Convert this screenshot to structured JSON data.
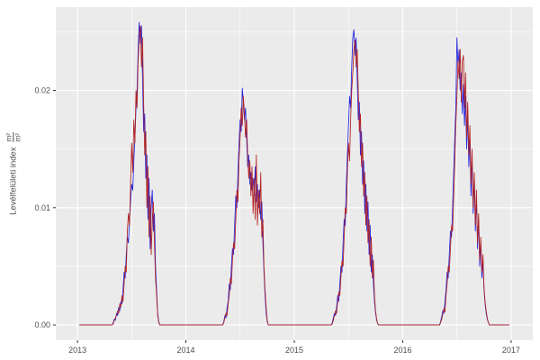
{
  "figure": {
    "bg": "#FFFFFF",
    "panel_bg": "#EBEBEB",
    "grid_color": "#FFFFFF",
    "tick_color": "#333333",
    "label_color": "#4D4D4D"
  },
  "chart_data": {
    "type": "line",
    "title": "",
    "xlabel": "",
    "ylabel": "Levélfelületi index m²/m²",
    "ylabel_text": "Levélfelületi index",
    "ylabel_frac_num": "m²",
    "ylabel_frac_den": "m²",
    "x_unit": "decimal year",
    "x_domain": [
      2012.8,
      2017.2
    ],
    "y_domain": [
      -0.0013,
      0.0271
    ],
    "x_ticks": [
      {
        "v": 2013,
        "label": "2013"
      },
      {
        "v": 2014,
        "label": "2014"
      },
      {
        "v": 2015,
        "label": "2015"
      },
      {
        "v": 2016,
        "label": "2016"
      },
      {
        "v": 2017,
        "label": "2017"
      }
    ],
    "y_ticks": [
      {
        "v": 0.0,
        "label": "0.00"
      },
      {
        "v": 0.01,
        "label": "0.01"
      },
      {
        "v": 0.02,
        "label": "0.02"
      }
    ],
    "x_minor": [
      2013.5,
      2014.5,
      2015.5,
      2016.5
    ],
    "y_minor": [
      0.005,
      0.015,
      0.025
    ],
    "grid": true,
    "legend": "none",
    "series": [
      {
        "name": "blue",
        "color": "#2222DD",
        "segments": [
          {
            "x0": 2013.02,
            "dx": 0.3,
            "y": [
              0,
              0
            ]
          },
          {
            "x0": 2013.32,
            "dx": 0.01,
            "y": [
              0,
              0.0002,
              0.0005,
              0.0004,
              0.001,
              0.0008,
              0.0015,
              0.0012,
              0.002,
              0.0018,
              0.003,
              0.0045,
              0.004,
              0.006,
              0.0075,
              0.007,
              0.009,
              0.0105,
              0.012,
              0.0115,
              0.014,
              0.016,
              0.0185,
              0.02,
              0.0235,
              0.0258,
              0.024,
              0.0255,
              0.021,
              0.0165,
              0.018,
              0.0125,
              0.0145,
              0.009,
              0.0125,
              0.0065,
              0.01,
              0.0115,
              0.008,
              0.0095,
              0.005,
              0.003,
              0.001,
              0.0003,
              0
            ]
          },
          {
            "x0": 2014.34,
            "dx": 0.01,
            "y": [
              0,
              0.0003,
              0.0008,
              0.0006,
              0.0015,
              0.002,
              0.0035,
              0.003,
              0.005,
              0.0065,
              0.006,
              0.0085,
              0.011,
              0.01,
              0.013,
              0.0155,
              0.0175,
              0.0165,
              0.0202,
              0.019,
              0.0175,
              0.0185,
              0.016,
              0.0135,
              0.0145,
              0.012,
              0.013,
              0.0115,
              0.0125,
              0.011,
              0.0135,
              0.0105,
              0.012,
              0.01,
              0.0115,
              0.009,
              0.0105,
              0.007,
              0.0045,
              0.0025,
              0.001,
              0.0003,
              0
            ]
          },
          {
            "x0": 2015.34,
            "dx": 0.01,
            "y": [
              0,
              0.0002,
              0.0006,
              0.001,
              0.0008,
              0.0015,
              0.0025,
              0.002,
              0.0035,
              0.005,
              0.0045,
              0.007,
              0.009,
              0.0085,
              0.012,
              0.0145,
              0.017,
              0.0195,
              0.0185,
              0.022,
              0.0245,
              0.0252,
              0.023,
              0.0245,
              0.021,
              0.0175,
              0.019,
              0.0145,
              0.0165,
              0.012,
              0.014,
              0.0095,
              0.012,
              0.008,
              0.0105,
              0.006,
              0.0085,
              0.0045,
              0.006,
              0.0035,
              0.002,
              0.001,
              0.0004,
              0.0001,
              0
            ]
          },
          {
            "x0": 2016.34,
            "dx": 0.01,
            "y": [
              0,
              0.0003,
              0.0007,
              0.0012,
              0.001,
              0.002,
              0.003,
              0.0045,
              0.004,
              0.006,
              0.008,
              0.0075,
              0.01,
              0.013,
              0.016,
              0.0185,
              0.0245,
              0.022,
              0.0235,
              0.02,
              0.0215,
              0.018,
              0.0205,
              0.017,
              0.0195,
              0.015,
              0.018,
              0.0135,
              0.016,
              0.011,
              0.014,
              0.0095,
              0.0125,
              0.008,
              0.011,
              0.0065,
              0.009,
              0.005,
              0.007,
              0.004,
              0.0055,
              0.003,
              0.0018,
              0.001,
              0.0005,
              0.0002,
              0
            ]
          },
          {
            "x0": 2016.8,
            "dx": 0.18,
            "y": [
              0,
              0
            ]
          }
        ]
      },
      {
        "name": "darkred",
        "color": "#B22222",
        "segments": [
          {
            "x0": 2013.02,
            "dx": 0.3,
            "y": [
              0,
              0
            ]
          },
          {
            "x0": 2013.32,
            "dx": 0.01,
            "y": [
              0,
              0.0001,
              0.0004,
              0.0006,
              0.0008,
              0.0012,
              0.001,
              0.0018,
              0.0015,
              0.0025,
              0.002,
              0.0035,
              0.005,
              0.0045,
              0.008,
              0.0095,
              0.0085,
              0.012,
              0.0155,
              0.013,
              0.0175,
              0.0155,
              0.02,
              0.0185,
              0.0225,
              0.0245,
              0.0255,
              0.022,
              0.0245,
              0.019,
              0.0145,
              0.0165,
              0.01,
              0.0135,
              0.0075,
              0.011,
              0.006,
              0.009,
              0.0105,
              0.007,
              0.004,
              0.0025,
              0.0008,
              0.0002,
              0
            ]
          },
          {
            "x0": 2014.34,
            "dx": 0.01,
            "y": [
              0,
              0.0002,
              0.0006,
              0.001,
              0.0008,
              0.0018,
              0.0025,
              0.004,
              0.0035,
              0.0055,
              0.007,
              0.0065,
              0.009,
              0.0115,
              0.0105,
              0.014,
              0.016,
              0.0185,
              0.017,
              0.0195,
              0.018,
              0.016,
              0.0175,
              0.0145,
              0.0125,
              0.014,
              0.011,
              0.0135,
              0.0095,
              0.0125,
              0.009,
              0.0145,
              0.0085,
              0.0115,
              0.0095,
              0.013,
              0.0075,
              0.009,
              0.005,
              0.003,
              0.0015,
              0.0004,
              0
            ]
          },
          {
            "x0": 2015.34,
            "dx": 0.01,
            "y": [
              0,
              0.0001,
              0.0004,
              0.0008,
              0.0012,
              0.001,
              0.002,
              0.0028,
              0.0025,
              0.004,
              0.0055,
              0.005,
              0.0075,
              0.01,
              0.0095,
              0.013,
              0.0155,
              0.014,
              0.0175,
              0.02,
              0.0215,
              0.0235,
              0.0243,
              0.022,
              0.0235,
              0.02,
              0.0165,
              0.018,
              0.0135,
              0.0155,
              0.011,
              0.013,
              0.0085,
              0.011,
              0.007,
              0.009,
              0.005,
              0.0075,
              0.004,
              0.0055,
              0.0025,
              0.0012,
              0.0005,
              0.0001,
              0
            ]
          },
          {
            "x0": 2016.34,
            "dx": 0.01,
            "y": [
              0,
              0.0002,
              0.0005,
              0.0009,
              0.0014,
              0.0011,
              0.0025,
              0.0035,
              0.005,
              0.0045,
              0.0065,
              0.0085,
              0.008,
              0.011,
              0.014,
              0.017,
              0.0195,
              0.0225,
              0.021,
              0.0235,
              0.019,
              0.0225,
              0.023,
              0.0185,
              0.0215,
              0.016,
              0.019,
              0.0145,
              0.017,
              0.012,
              0.015,
              0.01,
              0.013,
              0.0085,
              0.0115,
              0.007,
              0.0095,
              0.0055,
              0.0075,
              0.0045,
              0.006,
              0.0032,
              0.002,
              0.0012,
              0.0006,
              0.0002,
              0
            ]
          },
          {
            "x0": 2016.8,
            "dx": 0.18,
            "y": [
              0,
              0
            ]
          }
        ]
      }
    ]
  }
}
